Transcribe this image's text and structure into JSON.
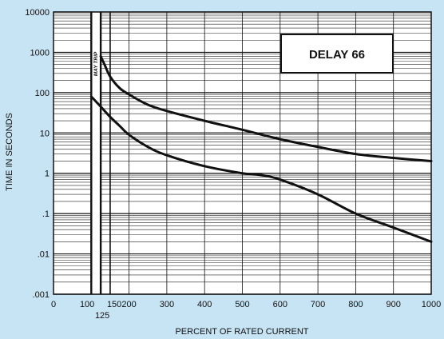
{
  "chart_data": {
    "type": "line",
    "title": "DELAY 66",
    "xlabel": "PERCENT OF RATED CURRENT",
    "ylabel": "TIME IN SECONDS",
    "x_scale": "linear",
    "y_scale": "log",
    "xlim": [
      0,
      1000
    ],
    "ylim": [
      0.001,
      10000
    ],
    "x_ticks": [
      0,
      100,
      150,
      200,
      300,
      400,
      500,
      600,
      700,
      800,
      900,
      1000
    ],
    "x_tick_labels": [
      "0",
      "100",
      "150",
      "200",
      "300",
      "400",
      "500",
      "600",
      "700",
      "800",
      "900",
      "1000"
    ],
    "x_extra_tick": {
      "value": 125,
      "label": "125"
    },
    "y_ticks": [
      0.001,
      0.01,
      0.1,
      1,
      10,
      100,
      1000,
      10000
    ],
    "y_tick_labels": [
      ".001",
      ".01",
      ".1",
      "1",
      "10",
      "100",
      "1000",
      "10000"
    ],
    "annotation": "MAY TRIP",
    "annotation_band": [
      100,
      125
    ],
    "grid": true,
    "series": [
      {
        "x": [
          125,
          135,
          150,
          175,
          200,
          250,
          300,
          400,
          500,
          600,
          700,
          800,
          900,
          1000
        ],
        "y": [
          800,
          500,
          250,
          130,
          90,
          50,
          35,
          20,
          12,
          7,
          4.5,
          3,
          2.4,
          2.0
        ]
      },
      {
        "x": [
          100,
          125,
          150,
          175,
          200,
          250,
          300,
          400,
          500,
          550,
          600,
          700,
          800,
          900,
          1000
        ],
        "y": [
          80,
          45,
          25,
          15,
          9,
          4.5,
          2.8,
          1.5,
          1.0,
          0.9,
          0.7,
          0.3,
          0.1,
          0.045,
          0.02
        ]
      }
    ]
  }
}
